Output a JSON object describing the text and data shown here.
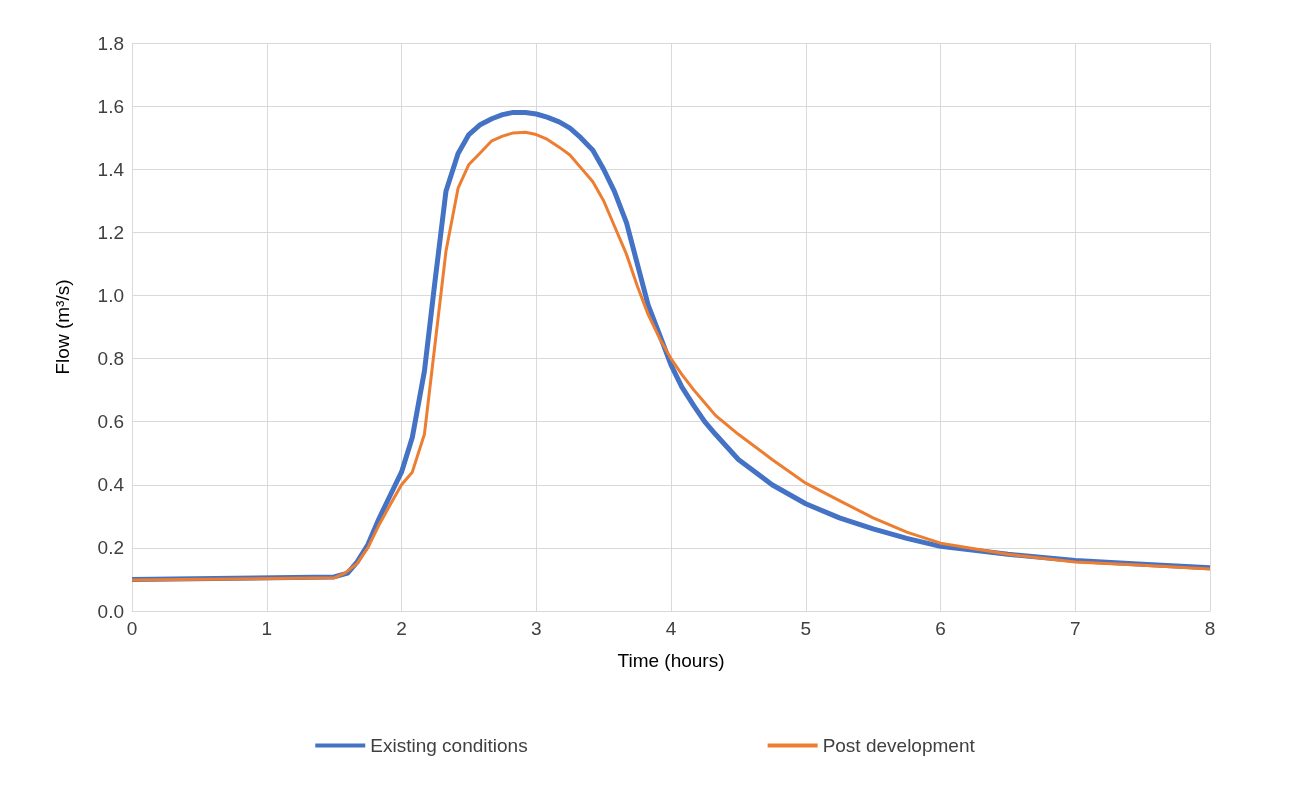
{
  "chart_data": {
    "type": "line",
    "xlabel": "Time (hours)",
    "ylabel": "Flow (m³/s)",
    "xlim": [
      0,
      8
    ],
    "xticks": [
      0,
      1,
      2,
      3,
      4,
      5,
      6,
      7,
      8
    ],
    "ylim": [
      0,
      1.8
    ],
    "yticks": [
      {
        "value": 0,
        "label": "0.0"
      },
      {
        "value": 0.2,
        "label": "0.2"
      },
      {
        "value": 0.4,
        "label": "0.4"
      },
      {
        "value": 0.6,
        "label": "0.6"
      },
      {
        "value": 0.8,
        "label": "0.8"
      },
      {
        "value": 1,
        "label": "1.0"
      },
      {
        "value": 1.2,
        "label": "1.2"
      },
      {
        "value": 1.4,
        "label": "1.4"
      },
      {
        "value": 1.6,
        "label": "1.6"
      },
      {
        "value": 1.8,
        "label": "1.8"
      }
    ],
    "grid": true,
    "legend": "bottom",
    "marker": "none",
    "line_style": "solid",
    "series": [
      {
        "name": "Existing conditions",
        "color": "#4472c4",
        "x": [
          0,
          1.5,
          1.6,
          1.67,
          1.75,
          1.83,
          1.92,
          2,
          2.08,
          2.17,
          2.25,
          2.33,
          2.42,
          2.5,
          2.58,
          2.67,
          2.75,
          2.83,
          2.92,
          3,
          3.08,
          3.17,
          3.25,
          3.33,
          3.42,
          3.5,
          3.58,
          3.67,
          3.75,
          3.83,
          3.92,
          4,
          4.08,
          4.17,
          4.25,
          4.33,
          4.5,
          4.75,
          5,
          5.25,
          5.5,
          5.75,
          6,
          6.5,
          7,
          7.5,
          8
        ],
        "values": [
          0.1,
          0.108,
          0.12,
          0.155,
          0.21,
          0.29,
          0.37,
          0.44,
          0.55,
          0.76,
          1.05,
          1.33,
          1.45,
          1.51,
          1.54,
          1.56,
          1.573,
          1.58,
          1.58,
          1.575,
          1.565,
          1.55,
          1.53,
          1.5,
          1.46,
          1.4,
          1.33,
          1.23,
          1.1,
          0.97,
          0.87,
          0.78,
          0.71,
          0.65,
          0.6,
          0.56,
          0.48,
          0.4,
          0.34,
          0.295,
          0.26,
          0.23,
          0.205,
          0.18,
          0.16,
          0.148,
          0.137
        ]
      },
      {
        "name": "Post development",
        "color": "#ed7d31",
        "x": [
          0,
          1.5,
          1.58,
          1.67,
          1.75,
          1.83,
          1.92,
          2,
          2.08,
          2.17,
          2.25,
          2.33,
          2.42,
          2.5,
          2.58,
          2.67,
          2.75,
          2.83,
          2.92,
          3,
          3.08,
          3.17,
          3.25,
          3.33,
          3.42,
          3.5,
          3.58,
          3.67,
          3.75,
          3.83,
          3.92,
          4,
          4.08,
          4.17,
          4.25,
          4.33,
          4.5,
          4.75,
          5,
          5.25,
          5.5,
          5.75,
          6,
          6.5,
          7,
          7.5,
          8
        ],
        "values": [
          0.098,
          0.105,
          0.12,
          0.15,
          0.2,
          0.27,
          0.34,
          0.4,
          0.44,
          0.56,
          0.85,
          1.14,
          1.34,
          1.415,
          1.45,
          1.49,
          1.505,
          1.515,
          1.517,
          1.51,
          1.495,
          1.47,
          1.445,
          1.405,
          1.36,
          1.3,
          1.22,
          1.13,
          1.03,
          0.94,
          0.86,
          0.8,
          0.75,
          0.7,
          0.66,
          0.62,
          0.56,
          0.48,
          0.405,
          0.35,
          0.295,
          0.25,
          0.215,
          0.18,
          0.155,
          0.145,
          0.133
        ]
      }
    ]
  }
}
